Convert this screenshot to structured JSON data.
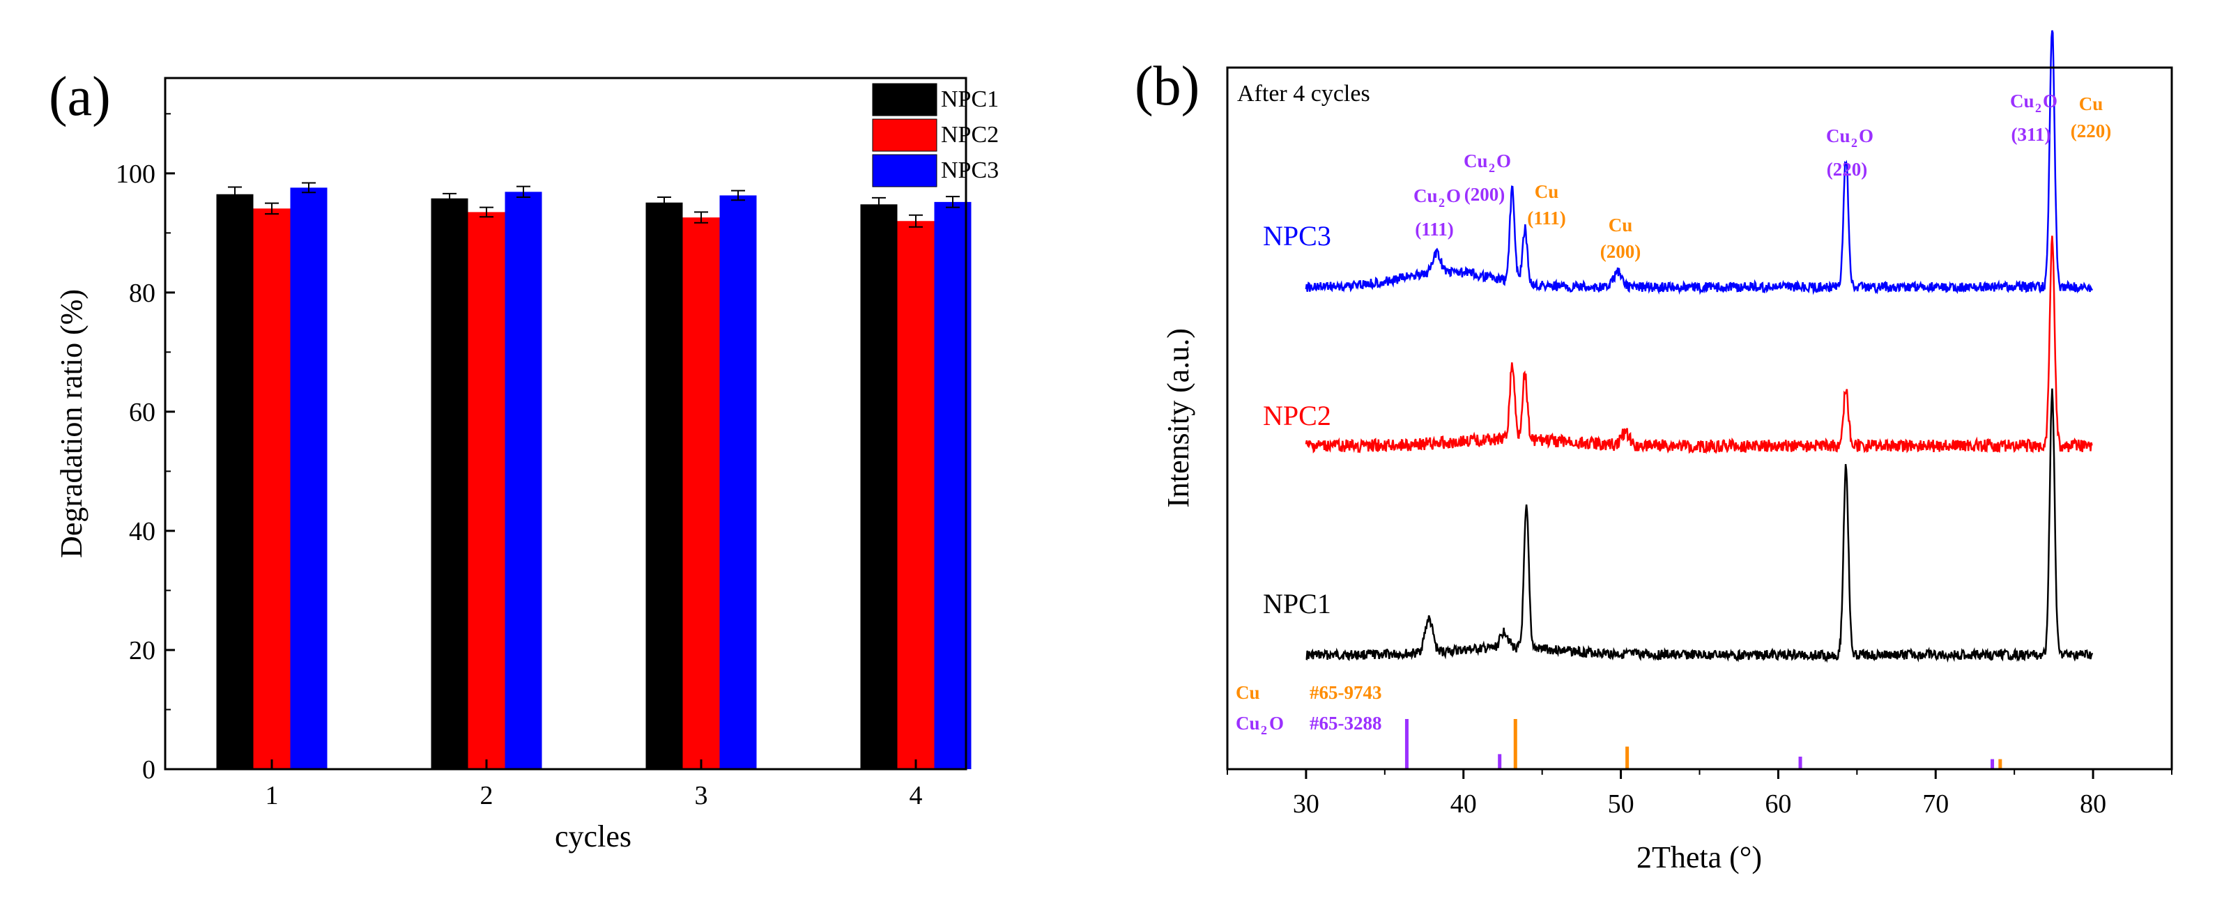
{
  "chart_data": [
    {
      "panel": "(a)",
      "type": "bar",
      "xlabel": "cycles",
      "ylabel": "Degradation ratio (%)",
      "ylim": [
        0,
        116
      ],
      "yticks": [
        "0",
        "20",
        "40",
        "60",
        "80",
        "100"
      ],
      "categories": [
        "1",
        "2",
        "3",
        "4"
      ],
      "legend_position": "top-right",
      "series": [
        {
          "name": "NPC1",
          "color": "#000000",
          "values": [
            96.5,
            95.8,
            95.1,
            94.8
          ],
          "errors": [
            1.2,
            0.8,
            0.9,
            1.1
          ]
        },
        {
          "name": "NPC2",
          "color": "#ff0000",
          "values": [
            94.1,
            93.5,
            92.6,
            92.0
          ],
          "errors": [
            0.9,
            0.8,
            0.9,
            1.0
          ]
        },
        {
          "name": "NPC3",
          "color": "#0000ff",
          "values": [
            97.6,
            96.9,
            96.3,
            95.2
          ],
          "errors": [
            0.8,
            0.9,
            0.8,
            0.9
          ]
        }
      ]
    },
    {
      "panel": "(b)",
      "type": "line",
      "xlabel": "2Theta (°)",
      "ylabel": "Intensity (a.u.)",
      "xlim": [
        25,
        85
      ],
      "xticks": [
        "30",
        "40",
        "50",
        "60",
        "70",
        "80"
      ],
      "corner_note": "After 4 cycles",
      "series": [
        {
          "name": "NPC1",
          "color": "#000000",
          "x_range": [
            30,
            80
          ],
          "peaks": [
            {
              "x": 37.8,
              "h": 0.12
            },
            {
              "x": 42.6,
              "h": 0.06
            },
            {
              "x": 44.0,
              "h": 0.5
            },
            {
              "x": 64.3,
              "h": 0.68
            },
            {
              "x": 77.4,
              "h": 0.95
            }
          ]
        },
        {
          "name": "NPC2",
          "color": "#ff0000",
          "x_range": [
            30,
            80
          ],
          "peaks": [
            {
              "x": 43.1,
              "h": 0.28
            },
            {
              "x": 43.9,
              "h": 0.25
            },
            {
              "x": 50.3,
              "h": 0.05
            },
            {
              "x": 64.3,
              "h": 0.22
            },
            {
              "x": 77.4,
              "h": 0.78
            }
          ]
        },
        {
          "name": "NPC3",
          "color": "#0000ff",
          "x_range": [
            30,
            80
          ],
          "peaks": [
            {
              "x": 38.3,
              "h": 0.06
            },
            {
              "x": 43.1,
              "h": 0.3
            },
            {
              "x": 43.9,
              "h": 0.18
            },
            {
              "x": 49.8,
              "h": 0.05
            },
            {
              "x": 64.3,
              "h": 0.42
            },
            {
              "x": 77.4,
              "h": 0.85
            }
          ]
        }
      ],
      "reference_labels": [
        {
          "name": "Cu",
          "card": "#65-9743",
          "color": "#ff8c00"
        },
        {
          "name": "Cu",
          "sub": "2",
          "suffix": "O",
          "card": "#65-3288",
          "color": "#9b30ff"
        }
      ],
      "reference_lines": [
        {
          "phase": "Cu2O",
          "x": 36.4,
          "h": 1.0,
          "color": "#9b30ff"
        },
        {
          "phase": "Cu2O",
          "x": 42.3,
          "h": 0.3,
          "color": "#9b30ff"
        },
        {
          "phase": "Cu",
          "x": 43.3,
          "h": 1.0,
          "color": "#ff8c00"
        },
        {
          "phase": "Cu",
          "x": 50.4,
          "h": 0.45,
          "color": "#ff8c00"
        },
        {
          "phase": "Cu2O",
          "x": 61.4,
          "h": 0.25,
          "color": "#9b30ff"
        },
        {
          "phase": "Cu2O",
          "x": 73.6,
          "h": 0.2,
          "color": "#9b30ff"
        },
        {
          "phase": "Cu",
          "x": 74.1,
          "h": 0.2,
          "color": "#ff8c00"
        }
      ],
      "peak_annotations": [
        {
          "a": "Cu",
          "b": "2",
          "c": "O",
          "hkl": "(111)",
          "color": "#9b30ff"
        },
        {
          "a": "Cu",
          "b": "2",
          "c": "O",
          "hkl": "(200)",
          "color": "#9b30ff"
        },
        {
          "a": "Cu",
          "b": "",
          "c": "",
          "hkl": "(111)",
          "color": "#ff8c00"
        },
        {
          "a": "Cu",
          "b": "",
          "c": "",
          "hkl": "(200)",
          "color": "#ff8c00"
        },
        {
          "a": "Cu",
          "b": "2",
          "c": "O",
          "hkl": "(220)",
          "color": "#9b30ff"
        },
        {
          "a": "Cu",
          "b": "2",
          "c": "O",
          "hkl": "(311)",
          "color": "#9b30ff"
        },
        {
          "a": "Cu",
          "b": "",
          "c": "",
          "hkl": "(220)",
          "color": "#ff8c00"
        }
      ]
    }
  ]
}
